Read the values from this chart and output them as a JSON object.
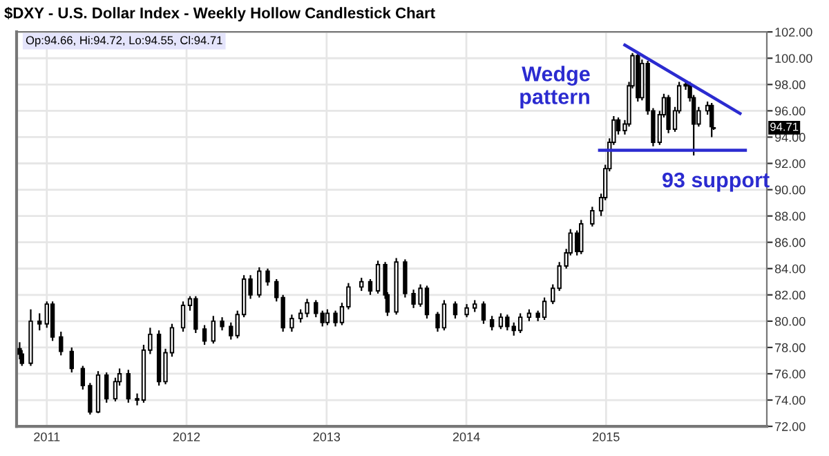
{
  "chart_data": {
    "type": "candlestick",
    "title": "$DXY - U.S. Dollar Index - Weekly Hollow Candlestick Chart",
    "annotations": [
      "Op:94.66, Hi:94.72, Lo:94.55, Cl:94.71",
      "Wedge\npattern",
      "93 support",
      "94.71"
    ],
    "x": [
      "2010-10-22",
      "2010-10-28",
      "2010-11-20",
      "2010-12-13",
      "2011-01-01",
      "2011-01-16",
      "2011-02-07",
      "2011-03-07",
      "2011-04-05",
      "2011-04-24",
      "2011-05-15",
      "2011-06-06",
      "2011-06-29",
      "2011-07-10",
      "2011-08-02",
      "2011-08-25",
      "2011-09-11",
      "2011-09-28",
      "2011-10-21",
      "2011-11-07",
      "2011-11-24",
      "2011-12-23",
      "2012-01-10",
      "2012-01-25",
      "2012-02-17",
      "2012-03-11",
      "2012-04-03",
      "2012-04-26",
      "2012-05-13",
      "2012-05-30",
      "2012-06-16",
      "2012-07-09",
      "2012-07-31",
      "2012-08-23",
      "2012-09-09",
      "2012-10-02",
      "2012-10-25",
      "2012-11-11",
      "2012-12-04",
      "2012-12-21",
      "2013-01-03",
      "2013-01-24",
      "2013-02-10",
      "2013-02-27",
      "2013-04-02",
      "2013-04-25",
      "2013-05-15",
      "2013-06-03",
      "2013-06-09",
      "2013-07-02",
      "2013-07-25",
      "2013-08-16",
      "2013-09-03",
      "2013-09-20",
      "2013-10-18",
      "2013-11-04",
      "2013-12-03",
      "2014-01-02",
      "2014-01-23",
      "2014-02-15",
      "2014-03-09",
      "2014-04-01",
      "2014-04-18",
      "2014-05-05",
      "2014-05-22",
      "2014-06-14",
      "2014-07-07",
      "2014-07-24",
      "2014-08-15",
      "2014-09-01",
      "2014-09-19",
      "2014-09-30",
      "2014-10-17",
      "2014-10-28",
      "2014-11-26",
      "2014-12-19",
      "2014-12-30",
      "2015-01-10",
      "2015-01-21",
      "2015-02-02",
      "2015-02-19",
      "2015-03-02",
      "2015-03-11",
      "2015-03-25",
      "2015-04-05",
      "2015-04-20",
      "2015-05-04",
      "2015-05-21",
      "2015-06-01",
      "2015-06-13",
      "2015-06-30",
      "2015-07-11",
      "2015-07-28",
      "2015-08-08",
      "2015-08-18",
      "2015-08-31",
      "2015-09-23",
      "2015-10-04",
      "2015-10-09"
    ],
    "ohlc": [
      [
        77.9,
        78.4,
        77.1,
        77.5
      ],
      [
        77.5,
        77.8,
        76.6,
        76.8
      ],
      [
        76.8,
        80.9,
        76.6,
        80.0
      ],
      [
        80.0,
        80.6,
        79.3,
        79.8
      ],
      [
        79.8,
        81.5,
        79.5,
        81.3
      ],
      [
        81.3,
        81.5,
        78.5,
        78.8
      ],
      [
        78.8,
        79.2,
        77.4,
        77.7
      ],
      [
        77.7,
        78.0,
        76.1,
        76.4
      ],
      [
        76.4,
        76.6,
        74.8,
        75.1
      ],
      [
        75.1,
        75.3,
        72.9,
        73.1
      ],
      [
        73.1,
        76.2,
        73.0,
        75.9
      ],
      [
        75.9,
        76.1,
        73.8,
        74.1
      ],
      [
        74.1,
        75.7,
        73.9,
        75.4
      ],
      [
        75.4,
        76.4,
        75.1,
        76.0
      ],
      [
        76.0,
        76.3,
        73.8,
        74.1
      ],
      [
        74.1,
        74.5,
        73.6,
        74.0
      ],
      [
        74.0,
        78.2,
        73.8,
        77.8
      ],
      [
        77.8,
        79.5,
        77.5,
        79.0
      ],
      [
        79.0,
        79.3,
        75.1,
        75.4
      ],
      [
        75.4,
        77.9,
        75.2,
        77.6
      ],
      [
        77.6,
        79.8,
        77.3,
        79.5
      ],
      [
        79.5,
        81.5,
        79.2,
        81.2
      ],
      [
        81.2,
        81.9,
        80.8,
        81.7
      ],
      [
        81.7,
        81.9,
        79.1,
        79.4
      ],
      [
        79.4,
        79.7,
        78.2,
        78.5
      ],
      [
        78.5,
        80.4,
        78.3,
        80.0
      ],
      [
        80.0,
        80.3,
        79.3,
        79.6
      ],
      [
        79.6,
        79.9,
        78.6,
        78.9
      ],
      [
        78.9,
        80.8,
        78.7,
        80.5
      ],
      [
        80.5,
        83.5,
        80.3,
        83.2
      ],
      [
        83.2,
        83.5,
        81.7,
        82.0
      ],
      [
        82.0,
        84.1,
        81.8,
        83.8
      ],
      [
        83.8,
        84.0,
        82.7,
        83.0
      ],
      [
        83.0,
        83.2,
        81.5,
        81.8
      ],
      [
        81.8,
        82.0,
        79.2,
        79.5
      ],
      [
        79.5,
        80.5,
        79.2,
        80.2
      ],
      [
        80.2,
        80.9,
        79.9,
        80.6
      ],
      [
        80.6,
        81.7,
        80.3,
        81.4
      ],
      [
        81.4,
        81.6,
        80.3,
        80.6
      ],
      [
        80.6,
        80.8,
        79.6,
        79.9
      ],
      [
        79.9,
        80.9,
        79.7,
        80.6
      ],
      [
        80.6,
        80.8,
        79.6,
        79.9
      ],
      [
        79.9,
        81.4,
        79.7,
        81.1
      ],
      [
        81.1,
        82.9,
        80.9,
        82.6
      ],
      [
        82.6,
        83.3,
        82.3,
        83.0
      ],
      [
        83.0,
        83.2,
        82.0,
        82.3
      ],
      [
        82.3,
        84.6,
        82.1,
        84.3
      ],
      [
        84.3,
        84.5,
        81.7,
        82.0
      ],
      [
        82.0,
        82.2,
        80.4,
        80.7
      ],
      [
        80.7,
        84.8,
        80.5,
        84.5
      ],
      [
        84.5,
        84.7,
        81.8,
        82.1
      ],
      [
        82.1,
        82.4,
        81.0,
        81.3
      ],
      [
        81.3,
        82.8,
        81.1,
        82.5
      ],
      [
        82.5,
        82.7,
        80.2,
        80.5
      ],
      [
        80.5,
        80.7,
        79.2,
        79.5
      ],
      [
        79.5,
        81.6,
        79.3,
        81.3
      ],
      [
        81.3,
        81.5,
        80.2,
        80.5
      ],
      [
        80.5,
        81.3,
        80.3,
        81.0
      ],
      [
        81.0,
        81.6,
        80.7,
        81.3
      ],
      [
        81.3,
        81.5,
        79.8,
        80.1
      ],
      [
        80.1,
        80.4,
        79.3,
        79.6
      ],
      [
        79.6,
        80.6,
        79.4,
        80.3
      ],
      [
        80.3,
        80.5,
        79.3,
        79.6
      ],
      [
        79.6,
        79.9,
        78.9,
        79.3
      ],
      [
        79.3,
        80.6,
        79.1,
        80.3
      ],
      [
        80.3,
        80.9,
        80.0,
        80.6
      ],
      [
        80.6,
        80.8,
        80.0,
        80.3
      ],
      [
        80.3,
        81.8,
        80.1,
        81.5
      ],
      [
        81.5,
        82.8,
        81.3,
        82.5
      ],
      [
        82.5,
        84.5,
        82.3,
        84.2
      ],
      [
        84.2,
        85.5,
        84.0,
        85.2
      ],
      [
        85.2,
        87.0,
        85.0,
        86.7
      ],
      [
        86.7,
        86.9,
        85.0,
        85.3
      ],
      [
        85.3,
        87.7,
        85.1,
        87.4
      ],
      [
        87.4,
        88.7,
        87.2,
        88.4
      ],
      [
        88.4,
        89.7,
        88.0,
        89.4
      ],
      [
        89.4,
        91.9,
        89.2,
        91.6
      ],
      [
        91.6,
        93.9,
        91.4,
        93.6
      ],
      [
        93.6,
        95.6,
        93.4,
        95.3
      ],
      [
        95.3,
        95.5,
        94.2,
        94.5
      ],
      [
        94.5,
        95.3,
        94.2,
        95.0
      ],
      [
        95.0,
        98.2,
        94.8,
        97.9
      ],
      [
        97.9,
        100.4,
        97.7,
        100.2
      ],
      [
        100.2,
        100.4,
        96.7,
        97.0
      ],
      [
        97.0,
        99.9,
        96.8,
        99.6
      ],
      [
        99.6,
        99.8,
        95.7,
        96.0
      ],
      [
        96.0,
        96.2,
        93.3,
        93.6
      ],
      [
        93.6,
        96.0,
        93.4,
        95.7
      ],
      [
        95.7,
        97.3,
        95.5,
        97.0
      ],
      [
        97.0,
        97.2,
        94.3,
        94.6
      ],
      [
        94.6,
        96.3,
        94.4,
        96.0
      ],
      [
        96.0,
        98.2,
        95.8,
        97.9
      ],
      [
        97.9,
        98.3,
        97.6,
        98.0
      ],
      [
        98.0,
        98.2,
        96.7,
        97.0
      ],
      [
        97.0,
        97.2,
        92.6,
        95.0
      ],
      [
        95.0,
        96.3,
        94.8,
        96.0
      ],
      [
        96.0,
        96.7,
        95.7,
        96.4
      ],
      [
        96.4,
        96.6,
        94.0,
        94.8
      ],
      [
        94.66,
        94.72,
        94.55,
        94.71
      ]
    ],
    "color": "#000000",
    "series": [
      {
        "type": "line",
        "x": [
          "2015-02-19",
          "2015-12-17"
        ],
        "values": [
          101.0,
          95.8
        ],
        "color": "#2b2bd0"
      },
      {
        "type": "line",
        "x": [
          "2014-12-15",
          "2015-12-31"
        ],
        "values": [
          93.0,
          93.0
        ],
        "color": "#2b2bd0"
      }
    ],
    "xlim": [
      "2010-10-14",
      "2016-02-25"
    ],
    "xticks": [
      {
        "value": "2011-01-01",
        "label": "2011"
      },
      {
        "value": "2012-01-01",
        "label": "2012"
      },
      {
        "value": "2013-01-01",
        "label": "2013"
      },
      {
        "value": "2014-01-01",
        "label": "2014"
      },
      {
        "value": "2015-01-01",
        "label": "2015"
      }
    ],
    "ylim": [
      72,
      102
    ],
    "yticks": [
      {
        "value": 72,
        "label": "72.00"
      },
      {
        "value": 74,
        "label": "74.00"
      },
      {
        "value": 76,
        "label": "76.00"
      },
      {
        "value": 78,
        "label": "78.00"
      },
      {
        "value": 80,
        "label": "80.00"
      },
      {
        "value": 82,
        "label": "82.00"
      },
      {
        "value": 84,
        "label": "84.00"
      },
      {
        "value": 86,
        "label": "86.00"
      },
      {
        "value": 88,
        "label": "88.00"
      },
      {
        "value": 90,
        "label": "90.00"
      },
      {
        "value": 92,
        "label": "92.00"
      },
      {
        "value": 94,
        "label": "94.00"
      },
      {
        "value": 96,
        "label": "96.00"
      },
      {
        "value": 98,
        "label": "98.00"
      },
      {
        "value": 100,
        "label": "100.00"
      },
      {
        "value": 102,
        "label": "102.00"
      }
    ],
    "grid": true
  }
}
